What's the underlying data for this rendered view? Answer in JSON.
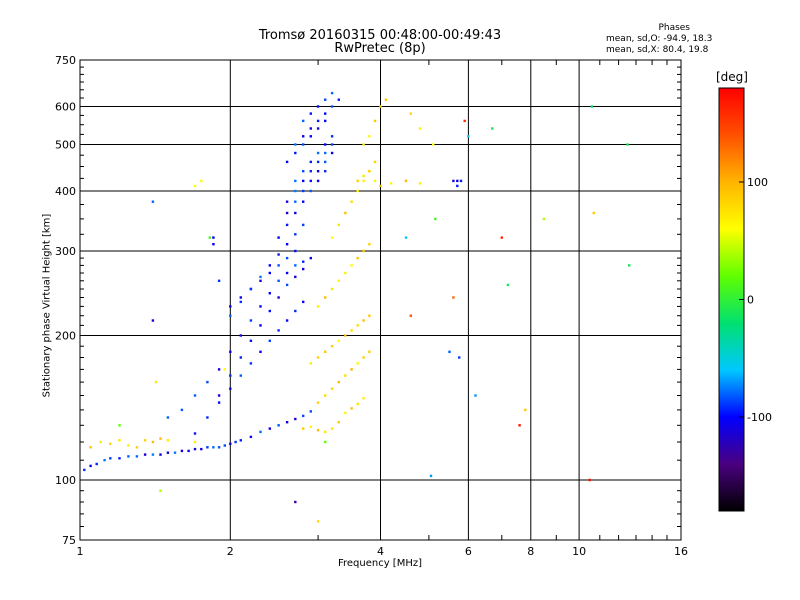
{
  "chart_data": {
    "type": "scatter",
    "title": "Tromsø 20160315 00:48:00-00:49:43",
    "subtitle": "RwPretec (8p)",
    "xlabel": "Frequency [MHz]",
    "ylabel": "Stationary phase Virtual Height [km]",
    "xscale": "log",
    "yscale": "log",
    "xlim": [
      1,
      16
    ],
    "ylim": [
      75,
      750
    ],
    "xticks": [
      1,
      2,
      4,
      6,
      8,
      10,
      16
    ],
    "yticks": [
      75,
      100,
      200,
      300,
      400,
      500,
      600,
      750
    ],
    "grid": true,
    "phases": {
      "title": "Phases",
      "o_mode": "mean, sd,O: -94.9, 18.3",
      "x_mode": "mean, sd,X: 80.4, 19.8"
    },
    "colorbar": {
      "unit": "[deg]",
      "ticks": [
        "100",
        "0",
        "-100"
      ],
      "tick_values": [
        100,
        0,
        -100
      ],
      "range": [
        -180,
        180
      ],
      "colors": [
        "#000000",
        "#4a0080",
        "#0000ff",
        "#00c8ff",
        "#00e070",
        "#60ff00",
        "#ffff00",
        "#ffb400",
        "#ff5000",
        "#ff0000"
      ]
    },
    "series": [
      {
        "name": "O",
        "mode_mean_deg": -94.9,
        "x": [
          1.02,
          1.05,
          1.08,
          1.12,
          1.15,
          1.2,
          1.25,
          1.3,
          1.35,
          1.4,
          1.45,
          1.5,
          1.55,
          1.6,
          1.65,
          1.7,
          1.75,
          1.8,
          1.85,
          1.9,
          1.95,
          2.0,
          2.05,
          2.1,
          2.2,
          2.3,
          2.4,
          2.5,
          2.6,
          2.7,
          2.8,
          2.9,
          1.5,
          1.6,
          1.7,
          1.8,
          1.9,
          2.0,
          2.1,
          2.2,
          2.3,
          2.4,
          2.5,
          2.6,
          2.7,
          2.8,
          2.9,
          1.7,
          1.8,
          1.9,
          2.0,
          2.1,
          2.2,
          2.3,
          2.4,
          2.5,
          2.6,
          2.7,
          2.8,
          1.9,
          2.0,
          2.1,
          2.2,
          2.3,
          2.4,
          2.5,
          2.6,
          2.7,
          2.8,
          2.0,
          2.1,
          2.2,
          2.3,
          2.4,
          2.5,
          2.6,
          2.7,
          2.8,
          2.0,
          2.1,
          2.2,
          2.3,
          2.4,
          2.5,
          2.6,
          2.7,
          2.5,
          2.6,
          2.7,
          2.8,
          2.9,
          3.0,
          3.1,
          2.6,
          2.7,
          2.8,
          2.9,
          3.0,
          3.1,
          3.2,
          2.6,
          2.7,
          2.8,
          2.9,
          3.0,
          3.1,
          2.6,
          2.7,
          2.8,
          2.9,
          3.0,
          3.1,
          3.2,
          2.7,
          2.8,
          2.9,
          3.0,
          3.1,
          3.2,
          3.3,
          2.7,
          2.8,
          2.9,
          3.0,
          3.1,
          3.2,
          2.8,
          2.9,
          3.0,
          3.1,
          3.2,
          1.4,
          1.4,
          1.85,
          1.85,
          5.6,
          5.7,
          5.75
        ],
        "y": [
          105,
          107,
          108,
          110,
          111,
          111,
          112,
          112,
          113,
          113,
          113,
          114,
          114,
          115,
          115,
          116,
          116,
          117,
          117,
          117,
          118,
          119,
          120,
          121,
          123,
          126,
          128,
          130,
          132,
          134,
          136,
          139,
          135,
          140,
          150,
          160,
          170,
          185,
          200,
          215,
          230,
          245,
          260,
          270,
          280,
          285,
          290,
          125,
          135,
          145,
          155,
          165,
          175,
          185,
          195,
          205,
          215,
          225,
          235,
          150,
          165,
          180,
          195,
          210,
          225,
          240,
          255,
          265,
          275,
          220,
          235,
          250,
          265,
          280,
          295,
          310,
          325,
          340,
          230,
          240,
          250,
          260,
          270,
          280,
          290,
          300,
          320,
          340,
          360,
          380,
          400,
          420,
          440,
          360,
          380,
          400,
          420,
          440,
          460,
          480,
          460,
          480,
          500,
          520,
          540,
          560,
          380,
          400,
          420,
          440,
          460,
          480,
          500,
          500,
          520,
          540,
          560,
          580,
          600,
          620,
          420,
          440,
          460,
          480,
          500,
          520,
          560,
          580,
          600,
          620,
          640,
          380,
          215,
          320,
          310,
          420,
          420,
          180
        ]
      },
      {
        "name": "X",
        "mode_mean_deg": 80.4,
        "x": [
          1.05,
          1.1,
          1.15,
          1.2,
          1.25,
          1.3,
          1.35,
          1.4,
          1.45,
          1.5,
          2.8,
          2.9,
          3.0,
          3.1,
          3.2,
          3.3,
          3.4,
          3.5,
          3.6,
          3.7,
          3.0,
          3.1,
          3.2,
          3.3,
          3.4,
          3.5,
          3.6,
          3.7,
          3.8,
          2.9,
          3.0,
          3.1,
          3.2,
          3.3,
          3.4,
          3.5,
          3.6,
          3.7,
          3.8,
          3.0,
          3.1,
          3.2,
          3.3,
          3.4,
          3.5,
          3.6,
          3.7,
          3.8,
          3.2,
          3.3,
          3.4,
          3.5,
          3.6,
          3.7,
          3.8,
          3.9,
          3.6,
          3.7,
          3.8,
          3.9,
          4.0,
          4.2,
          4.5,
          4.8,
          3.7,
          3.8,
          3.9,
          4.0,
          4.1,
          1.7,
          1.75,
          5.1,
          4.8,
          4.6
        ],
        "y": [
          117,
          120,
          119,
          121,
          118,
          117,
          121,
          120,
          122,
          121,
          128,
          129,
          127,
          126,
          128,
          132,
          138,
          141,
          144,
          148,
          145,
          150,
          155,
          160,
          165,
          170,
          175,
          180,
          185,
          175,
          180,
          185,
          190,
          195,
          200,
          205,
          210,
          215,
          220,
          230,
          240,
          250,
          260,
          270,
          280,
          290,
          300,
          310,
          320,
          340,
          360,
          380,
          400,
          420,
          440,
          460,
          420,
          430,
          440,
          420,
          410,
          415,
          420,
          415,
          500,
          520,
          560,
          600,
          620,
          410,
          420,
          500,
          540,
          580
        ]
      },
      {
        "name": "sparse",
        "x": [
          1.2,
          1.42,
          1.82,
          1.9,
          1.95,
          2.7,
          3.0,
          3.1,
          4.5,
          4.6,
          5.05,
          5.15,
          5.5,
          5.6,
          5.7,
          5.8,
          5.9,
          6.0,
          6.2,
          6.7,
          7.0,
          7.2,
          7.6,
          7.8,
          8.5,
          10.5,
          10.6,
          10.7,
          12.5,
          12.6,
          1.45,
          1.7
        ],
        "y": [
          130,
          160,
          320,
          260,
          170,
          90,
          82,
          120,
          320,
          220,
          102,
          350,
          185,
          240,
          410,
          420,
          560,
          520,
          150,
          540,
          320,
          255,
          130,
          140,
          350,
          100,
          600,
          360,
          500,
          280,
          95,
          120
        ],
        "phase_deg": [
          20,
          70,
          10,
          -90,
          60,
          -130,
          80,
          20,
          -60,
          140,
          -70,
          10,
          -80,
          130,
          -95,
          -95,
          160,
          -60,
          -70,
          -10,
          160,
          -10,
          170,
          90,
          40,
          170,
          -20,
          90,
          -10,
          -10,
          40,
          70
        ]
      }
    ]
  }
}
